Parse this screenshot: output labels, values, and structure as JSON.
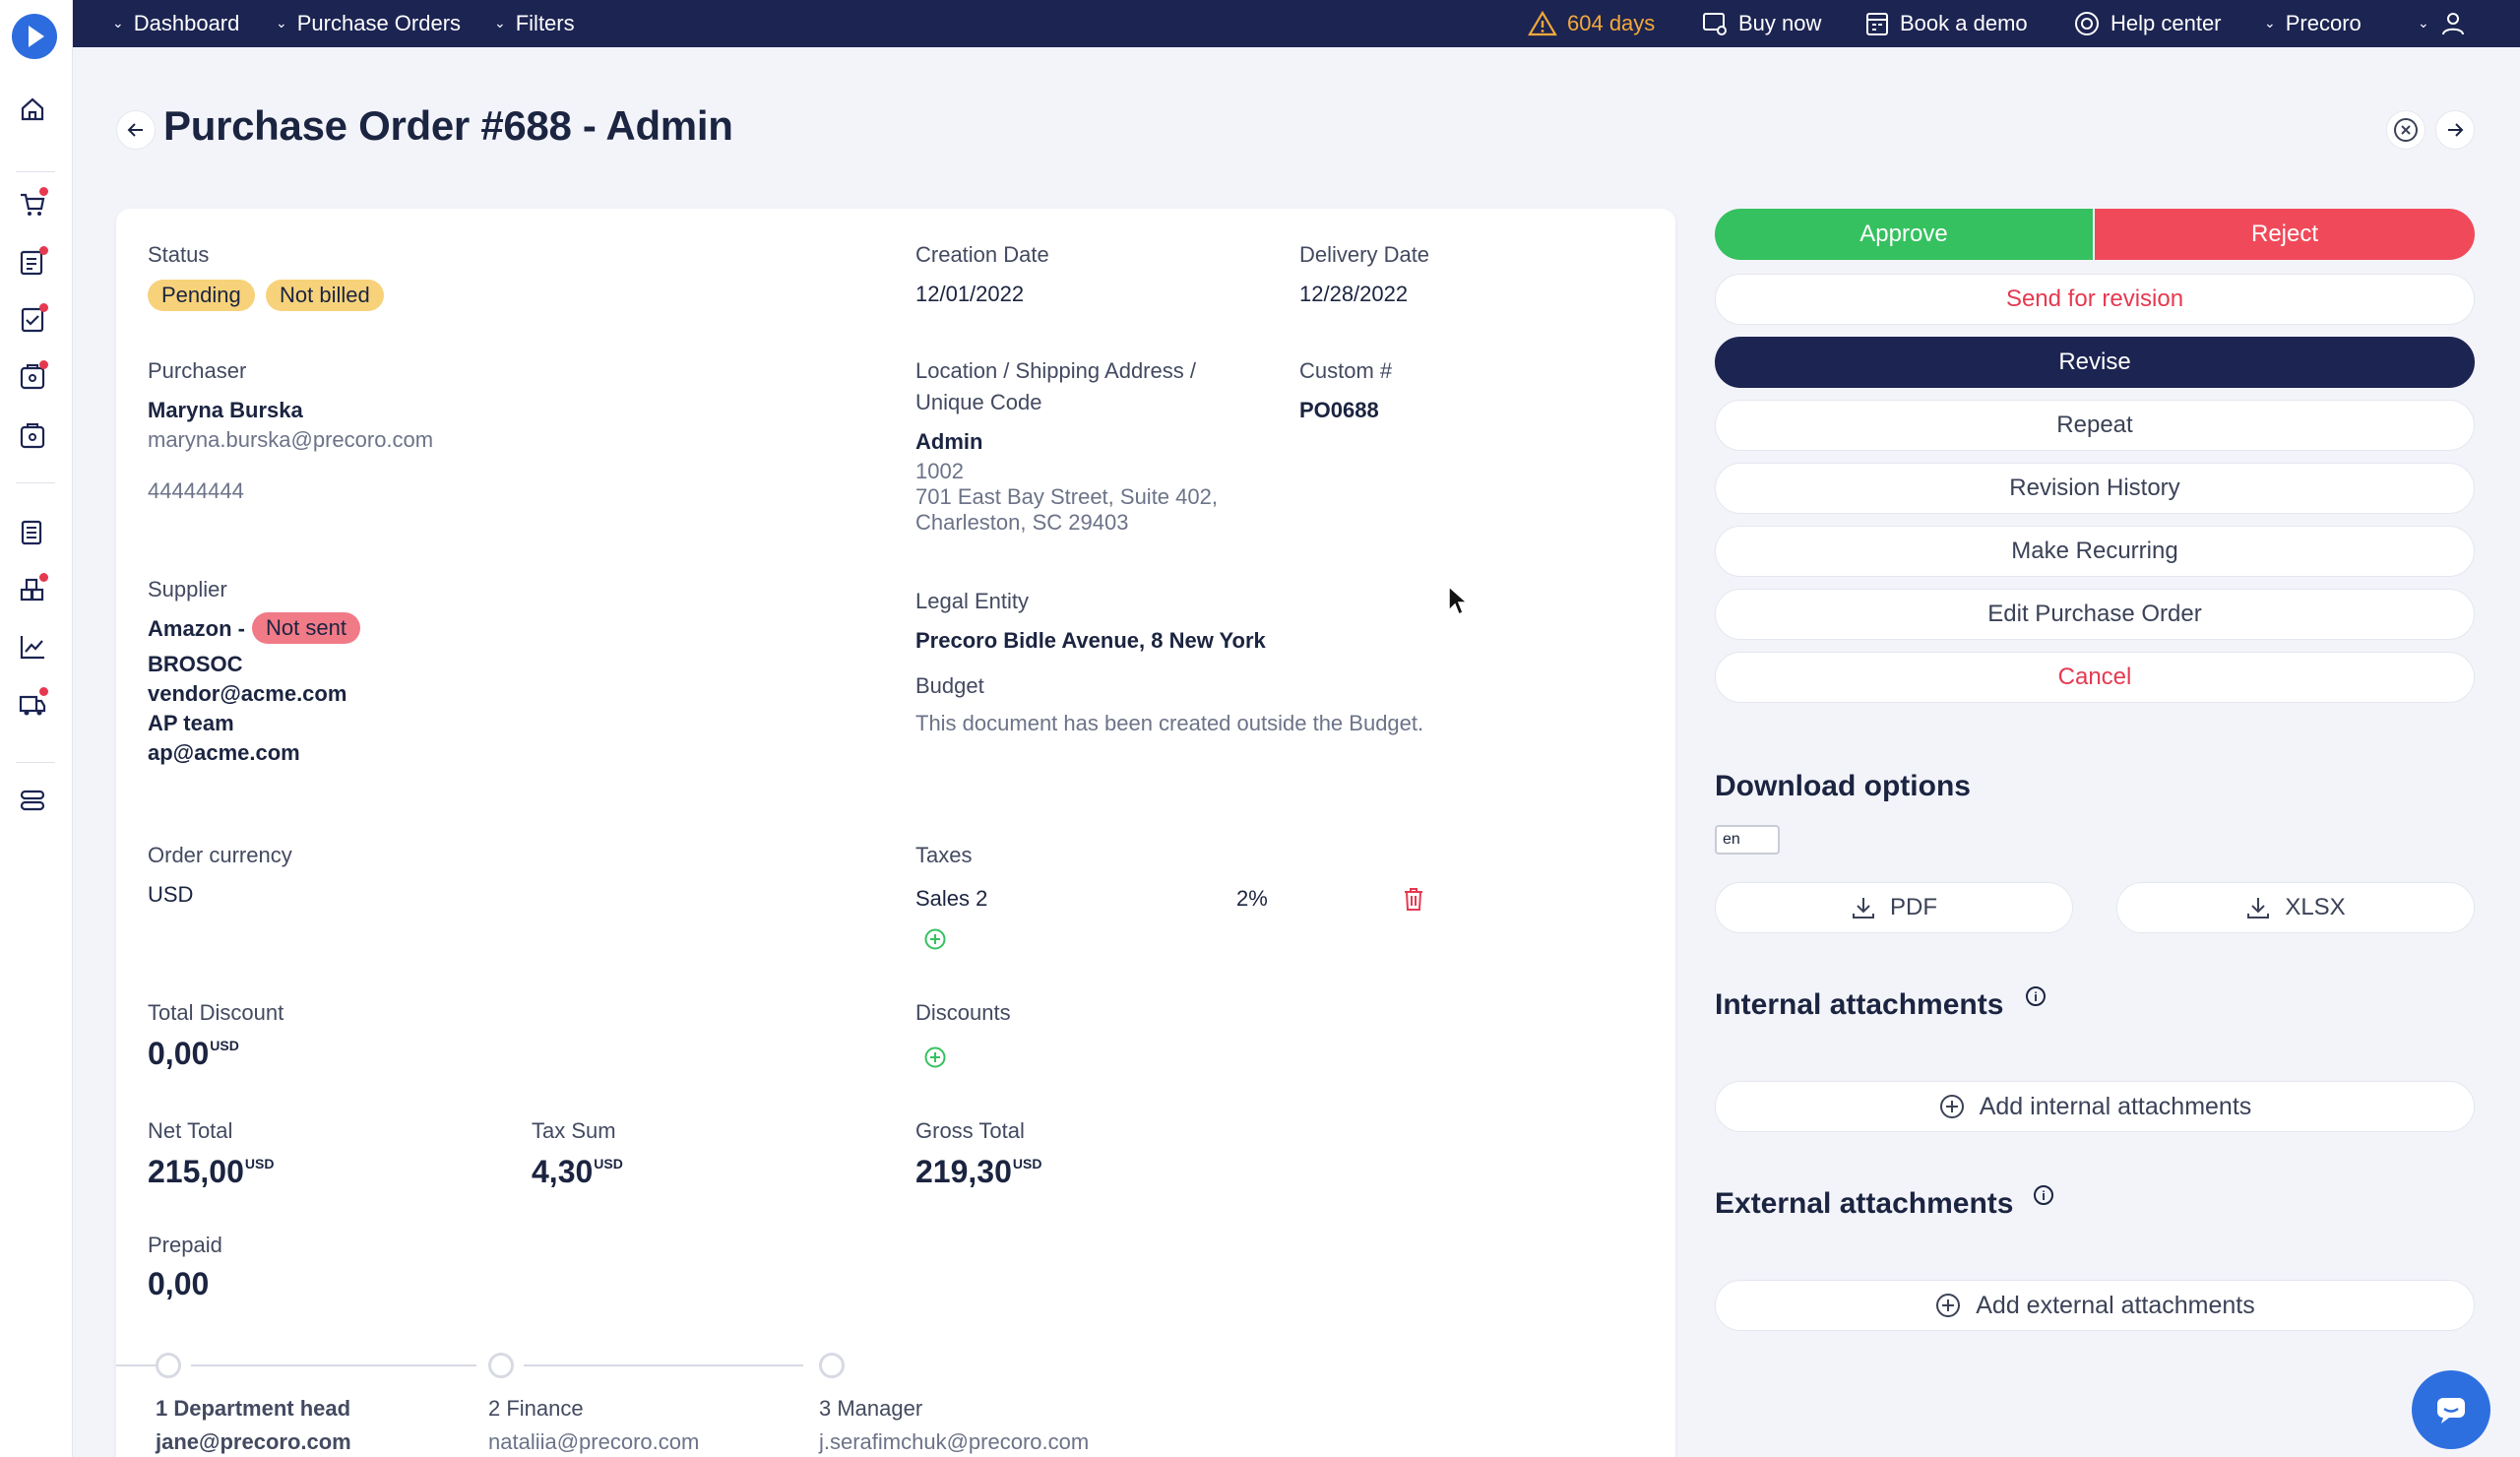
{
  "topbar": {
    "nav": [
      {
        "label": "Dashboard"
      },
      {
        "label": "Purchase Orders"
      },
      {
        "label": "Filters"
      }
    ],
    "trial_days": "604 days",
    "buy_now": "Buy now",
    "book_demo": "Book a demo",
    "help_center": "Help center",
    "company": "Precoro"
  },
  "page": {
    "title": "Purchase Order #688 - Admin"
  },
  "order": {
    "status_label": "Status",
    "status_badges": [
      "Pending",
      "Not billed"
    ],
    "creation_date_label": "Creation Date",
    "creation_date": "12/01/2022",
    "delivery_date_label": "Delivery Date",
    "delivery_date": "12/28/2022",
    "purchaser_label": "Purchaser",
    "purchaser_name": "Maryna Burska",
    "purchaser_email": "maryna.burska@precoro.com",
    "purchaser_phone": "44444444",
    "location_label_1": "Location / Shipping Address /",
    "location_label_2": "Unique Code",
    "location_name": "Admin",
    "location_code": "1002",
    "location_street": "701 East Bay Street, Suite 402,",
    "location_city": "Charleston, SC 29403",
    "custom_label": "Custom #",
    "custom_value": "PO0688",
    "supplier_label": "Supplier",
    "supplier_name": "Amazon -",
    "supplier_badge": "Not sent",
    "supplier_lines": [
      "BROSOC",
      "vendor@acme.com",
      "AP team",
      "ap@acme.com"
    ],
    "legal_entity_label": "Legal Entity",
    "legal_entity": "Precoro Bidle Avenue, 8 New York",
    "budget_label": "Budget",
    "budget_text": "This document has been created outside the Budget.",
    "currency_label": "Order currency",
    "currency": "USD",
    "taxes_label": "Taxes",
    "tax_name": "Sales 2",
    "tax_rate": "2%",
    "total_discount_label": "Total Discount",
    "total_discount": "0,00",
    "discounts_label": "Discounts",
    "net_total_label": "Net Total",
    "net_total": "215,00",
    "tax_sum_label": "Tax Sum",
    "tax_sum": "4,30",
    "gross_total_label": "Gross Total",
    "gross_total": "219,30",
    "unit": "USD",
    "prepaid_label": "Prepaid",
    "prepaid": "0,00",
    "approval_steps": [
      {
        "name": "1 Department head",
        "email": "jane@precoro.com"
      },
      {
        "name": "2 Finance",
        "email": "nataliia@precoro.com"
      },
      {
        "name": "3 Manager",
        "email": "j.serafimchuk@precoro.com"
      }
    ]
  },
  "actions": {
    "approve": "Approve",
    "reject": "Reject",
    "send_for_revision": "Send for revision",
    "revise": "Revise",
    "repeat": "Repeat",
    "revision_history": "Revision History",
    "make_recurring": "Make Recurring",
    "edit": "Edit Purchase Order",
    "cancel": "Cancel"
  },
  "downloads": {
    "title": "Download options",
    "language": "en",
    "pdf": "PDF",
    "xlsx": "XLSX"
  },
  "attachments": {
    "internal_title": "Internal attachments",
    "internal_add": "Add internal attachments",
    "external_title": "External attachments",
    "external_add": "Add external attachments"
  },
  "colors": {
    "navy": "#1c2452",
    "approve": "#35c15f",
    "reject": "#f04a5a",
    "warning": "#f4a93a",
    "accent": "#2e6fe0"
  }
}
